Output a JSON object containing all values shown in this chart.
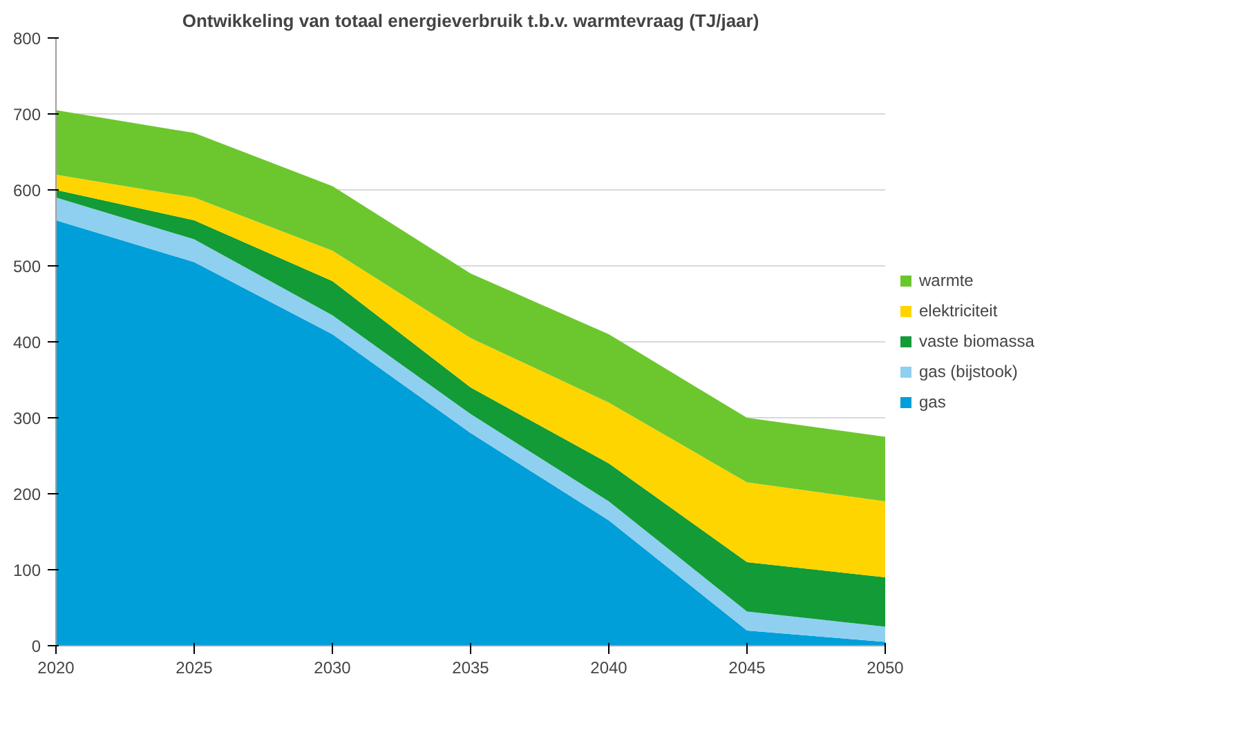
{
  "chart_data": {
    "type": "area",
    "stacked": true,
    "title": "Ontwikkeling van totaal energieverbruik t.b.v. warmtevraag (TJ/jaar)",
    "x": [
      2020,
      2025,
      2030,
      2035,
      2040,
      2045,
      2050
    ],
    "series": [
      {
        "name": "gas",
        "color": "#009fda",
        "values": [
          560,
          505,
          410,
          280,
          165,
          20,
          5
        ]
      },
      {
        "name": "gas (bijstook)",
        "color": "#8fd0f0",
        "values": [
          30,
          30,
          25,
          25,
          25,
          25,
          20
        ]
      },
      {
        "name": "vaste biomassa",
        "color": "#129b37",
        "values": [
          10,
          25,
          45,
          35,
          50,
          65,
          65
        ]
      },
      {
        "name": "elektriciteit",
        "color": "#ffd500",
        "values": [
          20,
          30,
          40,
          65,
          80,
          105,
          100
        ]
      },
      {
        "name": "warmte",
        "color": "#6cc72e",
        "values": [
          85,
          85,
          85,
          85,
          90,
          85,
          85
        ]
      }
    ],
    "xlim": [
      2020,
      2050
    ],
    "xticks": [
      2020,
      2025,
      2030,
      2035,
      2040,
      2045,
      2050
    ],
    "ylim": [
      0,
      800
    ],
    "yticks": [
      0,
      100,
      200,
      300,
      400,
      500,
      600,
      700,
      800
    ],
    "grid": "y",
    "legend": "right"
  }
}
